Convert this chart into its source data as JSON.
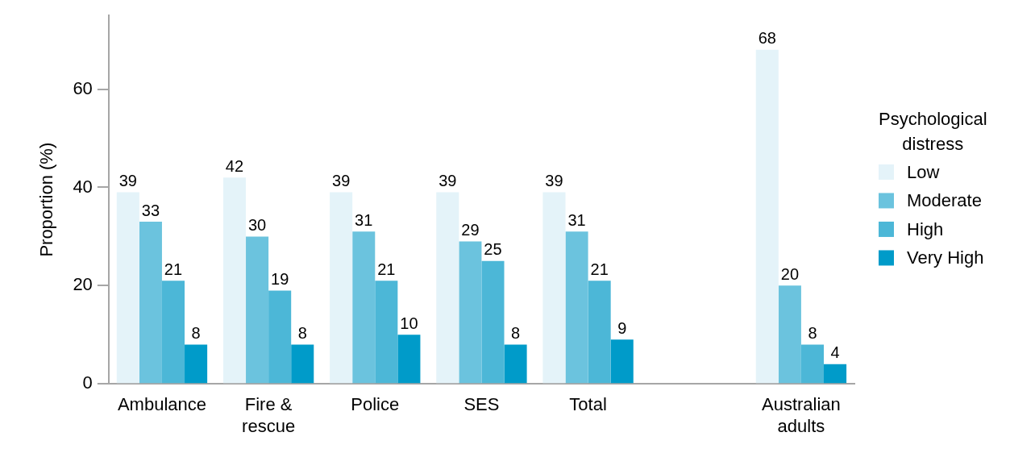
{
  "chart_data": {
    "type": "bar",
    "categories": [
      "Ambulance",
      "Fire & rescue",
      "Police",
      "SES",
      "Total",
      null,
      "Australian adults"
    ],
    "series": [
      {
        "name": "Low",
        "color": "#e4f3f9",
        "values": [
          39,
          42,
          39,
          39,
          39,
          null,
          68
        ]
      },
      {
        "name": "Moderate",
        "color": "#6bc3de",
        "values": [
          33,
          30,
          31,
          29,
          31,
          null,
          20
        ]
      },
      {
        "name": "High",
        "color": "#4cb7d7",
        "values": [
          21,
          19,
          21,
          25,
          21,
          null,
          8
        ]
      },
      {
        "name": "Very High",
        "color": "#009bc9",
        "values": [
          8,
          8,
          10,
          8,
          9,
          null,
          4
        ]
      }
    ],
    "ylabel": "Proportion (%)",
    "legend_title": "Psychological distress",
    "legend": "right",
    "ylim": [
      0,
      75
    ],
    "yticks": [
      0,
      20,
      40,
      60
    ],
    "data_labels": true
  }
}
